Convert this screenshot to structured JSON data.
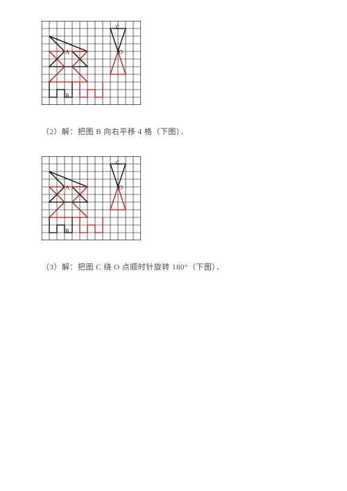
{
  "grid": {
    "cols": 13,
    "rows": 11,
    "cell": 11,
    "stroke": "#000000",
    "stroke_width": 0.6,
    "background": "#ffffff"
  },
  "labels": {
    "A": {
      "text": "A",
      "col": 3.1,
      "row": 4.3,
      "fontsize": 8,
      "color": "#000000"
    },
    "B": {
      "text": "B",
      "col": 3.1,
      "row": 10.0,
      "fontsize": 8,
      "color": "#000000"
    },
    "C": {
      "text": "C",
      "col": 9.7,
      "row": 1.1,
      "fontsize": 8,
      "color": "#000000"
    },
    "O": {
      "text": "O",
      "col": 10.1,
      "row": 4.3,
      "fontsize": 8,
      "color": "#000000"
    }
  },
  "colors": {
    "black": "#000000",
    "red": "#c01818"
  },
  "shapes": {
    "arrow_A_black": {
      "type": "polyline",
      "closed": true,
      "stroke": "#000000",
      "points": [
        [
          1,
          2
        ],
        [
          6,
          4
        ],
        [
          4,
          4
        ],
        [
          6,
          6
        ],
        [
          1,
          6
        ],
        [
          3,
          4
        ],
        [
          1,
          2
        ]
      ]
    },
    "arrow_A_red": {
      "type": "polyline",
      "closed": true,
      "stroke": "#c01818",
      "points": [
        [
          1,
          4
        ],
        [
          6,
          4
        ],
        [
          4,
          6
        ],
        [
          6,
          8
        ],
        [
          1,
          8
        ],
        [
          3,
          6
        ],
        [
          1,
          4
        ]
      ]
    },
    "B_black": {
      "type": "polyline",
      "closed": false,
      "stroke": "#000000",
      "points": [
        [
          1,
          8
        ],
        [
          1,
          10
        ],
        [
          2,
          10
        ],
        [
          2,
          9
        ],
        [
          3,
          9
        ],
        [
          3,
          10
        ],
        [
          4,
          10
        ],
        [
          4,
          8
        ]
      ]
    },
    "B_red": {
      "type": "polyline",
      "closed": false,
      "stroke": "#c01818",
      "points": [
        [
          5,
          8
        ],
        [
          5,
          10
        ],
        [
          6,
          10
        ],
        [
          6,
          9
        ],
        [
          7,
          9
        ],
        [
          7,
          10
        ],
        [
          8,
          10
        ],
        [
          8,
          8
        ]
      ]
    },
    "C_black": {
      "type": "polyline",
      "closed": true,
      "stroke": "#000000",
      "points": [
        [
          9,
          1
        ],
        [
          11,
          1
        ],
        [
          10,
          4
        ],
        [
          9,
          1
        ]
      ]
    },
    "C_red": {
      "type": "polyline",
      "closed": true,
      "stroke": "#c01818",
      "points": [
        [
          10,
          4
        ],
        [
          11,
          7
        ],
        [
          9,
          7
        ],
        [
          10,
          4
        ]
      ]
    },
    "O_dot": {
      "type": "dot",
      "col": 10,
      "row": 4,
      "r": 1.4,
      "fill": "#000000"
    }
  },
  "captions": {
    "c2": "（2）解：把图 B 向右平移 4 格（下图）．",
    "c3": "（3）解：把图 C 绕 O 点顺时针旋转 180°（下图）．"
  }
}
